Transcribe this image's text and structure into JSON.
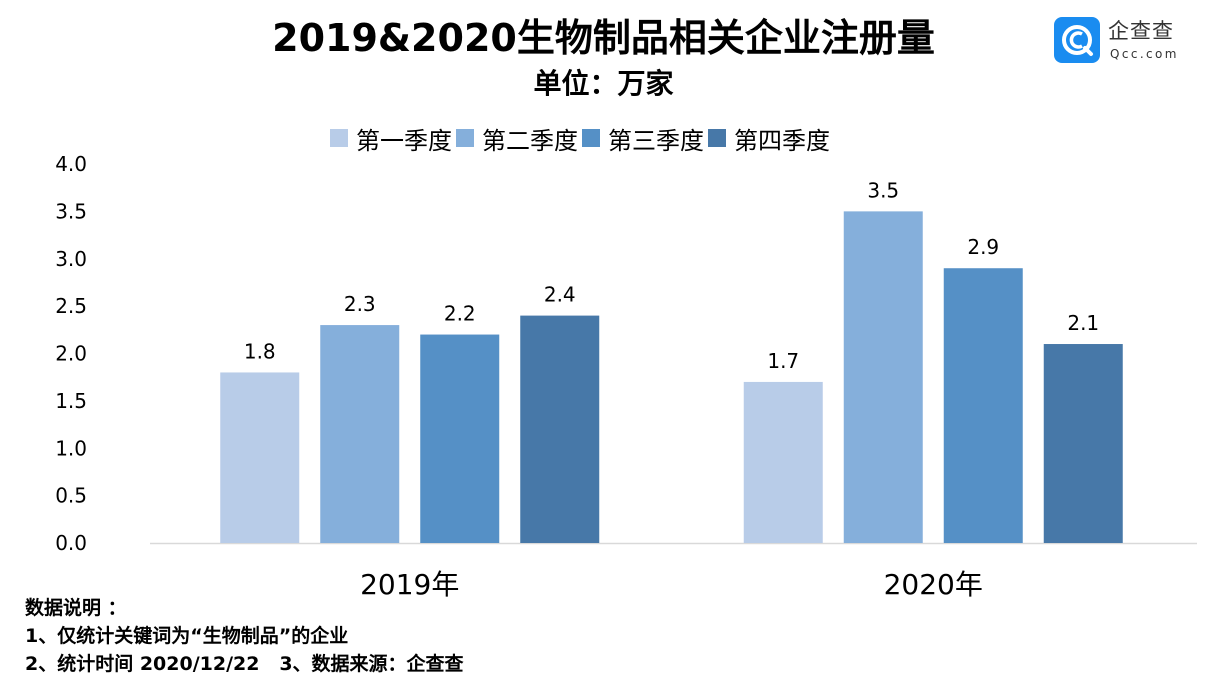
{
  "header": {
    "title": "2019&2020生物制品相关企业注册量",
    "subtitle": "单位：万家"
  },
  "logo": {
    "icon": "qcc-logo-icon",
    "name_cn": "企查查",
    "name_en": "Qcc.com",
    "color": "#1a8cf0"
  },
  "chart_data": {
    "type": "bar",
    "title": "2019&2020生物制品相关企业注册量",
    "subtitle": "单位：万家",
    "xlabel": "",
    "ylabel": "",
    "categories": [
      "2019年",
      "2020年"
    ],
    "series": [
      {
        "name": "第一季度",
        "color": "#b8cce8",
        "values": [
          1.8,
          1.7
        ]
      },
      {
        "name": "第二季度",
        "color": "#85afdb",
        "values": [
          2.3,
          3.5
        ]
      },
      {
        "name": "第三季度",
        "color": "#5590c6",
        "values": [
          2.2,
          2.9
        ]
      },
      {
        "name": "第四季度",
        "color": "#4778a8",
        "values": [
          2.4,
          2.1
        ]
      }
    ],
    "data_labels": [
      [
        "1.8",
        "1.7"
      ],
      [
        "2.3",
        "3.5"
      ],
      [
        "2.2",
        "2.9"
      ],
      [
        "2.4",
        "2.1"
      ]
    ],
    "ylim": [
      0,
      4.0
    ],
    "yticks": [
      "0.0",
      "0.5",
      "1.0",
      "1.5",
      "2.0",
      "2.5",
      "3.0",
      "3.5",
      "4.0"
    ],
    "grid": false,
    "legend_position": "top"
  },
  "notes": {
    "heading": "数据说明 ：",
    "line1": "1、仅统计关键词为“生物制品”的企业",
    "line2": "2、统计时间 2020/12/22   3、数据来源：企查查"
  }
}
